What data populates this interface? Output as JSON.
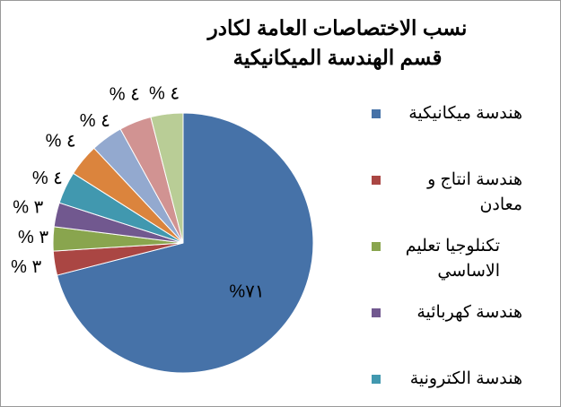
{
  "chart_data": {
    "type": "pie",
    "title": "نسب الاختصاصات العامة لكادر قسم الهندسة الميكانيكية",
    "categories": [
      "هندسة ميكانيكية",
      "هندسة انتاج و معادن",
      "تكنلوجيا تعليم الاساسي",
      "هندسة كهربائية",
      "هندسة الكترونية",
      null,
      null,
      null,
      null
    ],
    "values": [
      71,
      3,
      3,
      3,
      4,
      4,
      4,
      4,
      4
    ],
    "value_labels": [
      "%٧١",
      "% ٣",
      "% ٣",
      "% ٣",
      "% ٤",
      "% ٤",
      "% ٤",
      "% ٤",
      "% ٤"
    ],
    "colors": [
      "#4672a8",
      "#aa4643",
      "#89a54e",
      "#71588f",
      "#4198af",
      "#db843d",
      "#93a9cf",
      "#d19392",
      "#b9cd96"
    ]
  }
}
